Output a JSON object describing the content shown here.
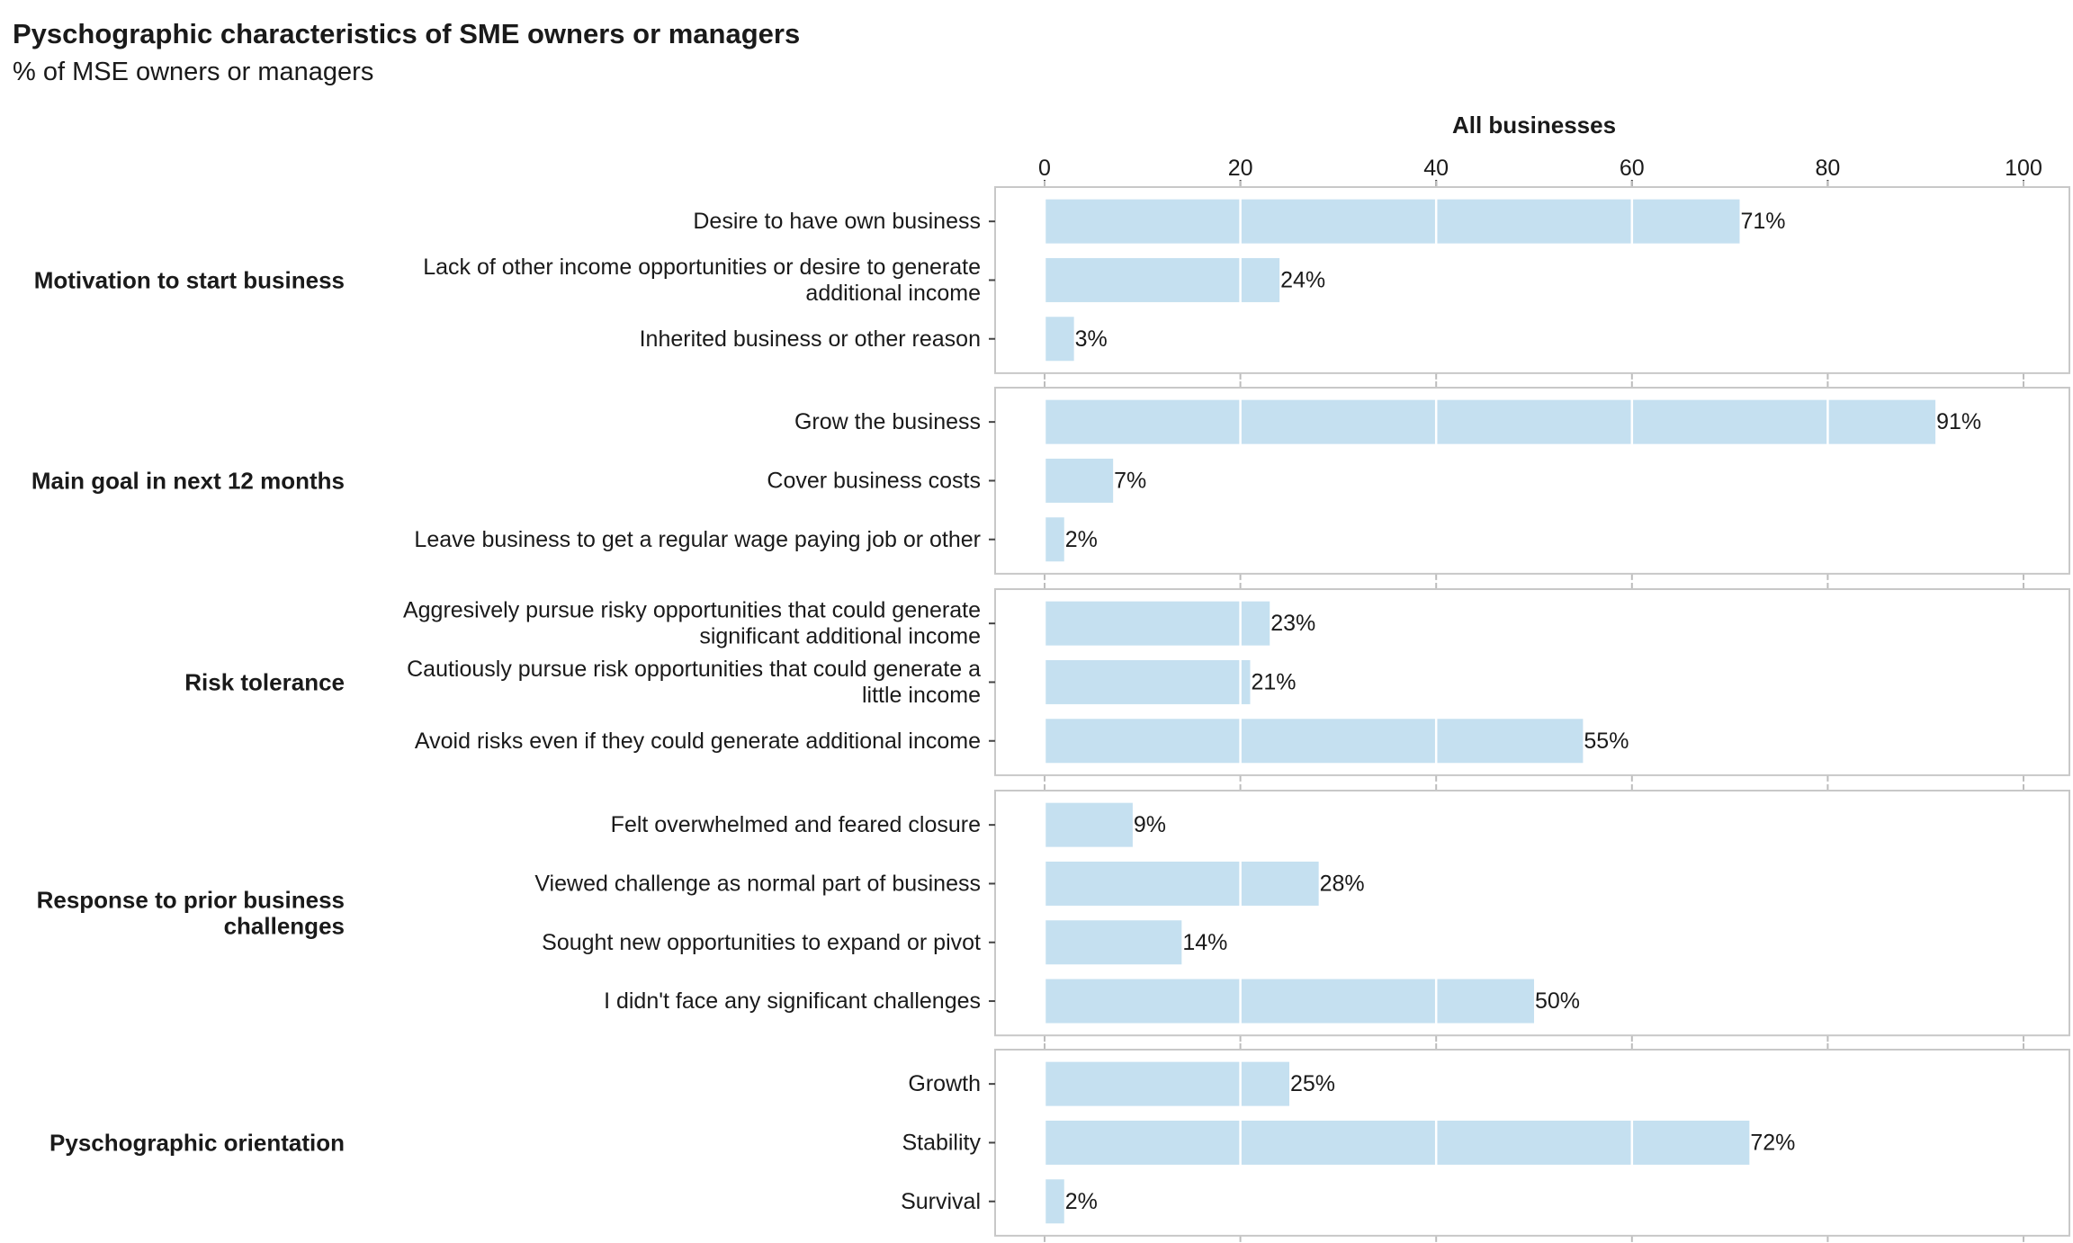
{
  "chart_data": {
    "type": "bar",
    "orientation": "horizontal",
    "title": "Pyschographic characteristics of SME owners or managers",
    "subtitle": "% of MSE owners or managers",
    "facet_title": "All businesses",
    "xlim": [
      0,
      100
    ],
    "x_ticks": [
      0,
      20,
      40,
      60,
      80,
      100
    ],
    "bar_color": "#c5e0f0",
    "grid": true,
    "value_suffix": "%",
    "groups": [
      {
        "label": "Motivation to start business",
        "items": [
          {
            "label": "Desire to have own business",
            "value": 71
          },
          {
            "label": "Lack of other income opportunities or desire to generate\nadditional income",
            "value": 24
          },
          {
            "label": "Inherited business or other reason",
            "value": 3
          }
        ]
      },
      {
        "label": "Main goal in next 12 months",
        "items": [
          {
            "label": "Grow the business",
            "value": 91
          },
          {
            "label": "Cover business costs",
            "value": 7
          },
          {
            "label": "Leave business to get a regular wage paying job or other",
            "value": 2
          }
        ]
      },
      {
        "label": "Risk tolerance",
        "items": [
          {
            "label": "Aggresively pursue risky opportunities that could generate\nsignificant additional income",
            "value": 23
          },
          {
            "label": "Cautiously pursue risk opportunities that could generate a\nlittle income",
            "value": 21
          },
          {
            "label": "Avoid risks even if they could generate additional income",
            "value": 55
          }
        ]
      },
      {
        "label": "Response to prior business\nchallenges",
        "items": [
          {
            "label": "Felt overwhelmed and feared closure",
            "value": 9
          },
          {
            "label": "Viewed challenge as normal part of business",
            "value": 28
          },
          {
            "label": "Sought new opportunities to expand or pivot",
            "value": 14
          },
          {
            "label": "I didn't face any significant challenges",
            "value": 50
          }
        ]
      },
      {
        "label": "Pyschographic orientation",
        "items": [
          {
            "label": "Growth",
            "value": 25
          },
          {
            "label": "Stability",
            "value": 72
          },
          {
            "label": "Survival",
            "value": 2
          }
        ]
      }
    ]
  }
}
